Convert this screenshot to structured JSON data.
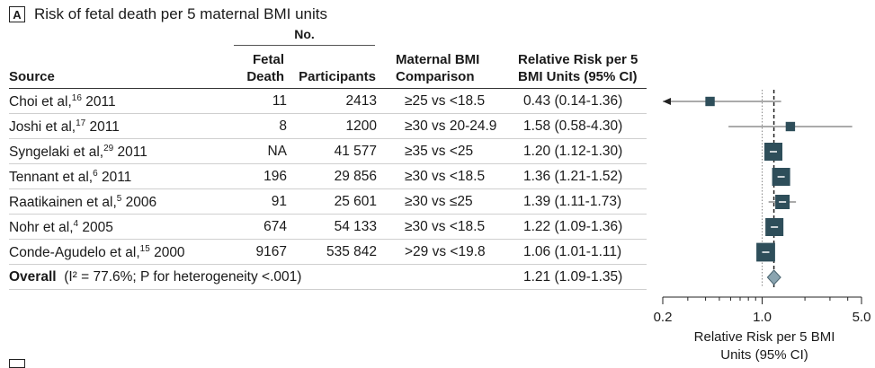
{
  "panel": {
    "label": "A",
    "title": "Risk of fetal death per 5 maternal BMI units"
  },
  "columns": {
    "group_no": "No.",
    "source": "Source",
    "fetal_death_1": "Fetal",
    "fetal_death_2": "Death",
    "participants": "Participants",
    "comparison_1": "Maternal BMI",
    "comparison_2": "Comparison",
    "rr_1": "Relative Risk per 5",
    "rr_2": "BMI Units (95% CI)"
  },
  "rows": [
    {
      "author": "Choi et al,",
      "ref": "16",
      "year": " 2011",
      "fetal_death": "11",
      "participants": "2413",
      "comparison": "≥25 vs <18.5",
      "rr_text": "0.43 (0.14-1.36)"
    },
    {
      "author": "Joshi et al,",
      "ref": "17",
      "year": " 2011",
      "fetal_death": "8",
      "participants": "1200",
      "comparison": "≥30 vs 20-24.9",
      "rr_text": "1.58 (0.58-4.30)"
    },
    {
      "author": "Syngelaki et al,",
      "ref": "29",
      "year": " 2011",
      "fetal_death": "NA",
      "participants": "41 577",
      "comparison": "≥35 vs <25",
      "rr_text": "1.20 (1.12-1.30)"
    },
    {
      "author": "Tennant et al,",
      "ref": "6",
      "year": " 2011",
      "fetal_death": "196",
      "participants": "29 856",
      "comparison": "≥30 vs <18.5",
      "rr_text": "1.36 (1.21-1.52)"
    },
    {
      "author": "Raatikainen et al,",
      "ref": "5",
      "year": " 2006",
      "fetal_death": "91",
      "participants": "25 601",
      "comparison": "≥30 vs ≤25",
      "rr_text": "1.39 (1.11-1.73)"
    },
    {
      "author": "Nohr et al,",
      "ref": "4",
      "year": " 2005",
      "fetal_death": "674",
      "participants": "54 133",
      "comparison": "≥30 vs <18.5",
      "rr_text": "1.22 (1.09-1.36)"
    },
    {
      "author": "Conde-Agudelo et al,",
      "ref": "15",
      "year": " 2000",
      "fetal_death": "9167",
      "participants": "535 842",
      "comparison": ">29 vs <19.8",
      "rr_text": "1.06 (1.01-1.11)"
    }
  ],
  "overall": {
    "label": "Overall",
    "stats": "(I² = 77.6%; P for heterogeneity <.001)",
    "rr_text": "1.21 (1.09-1.35)"
  },
  "chart_data": {
    "type": "forest",
    "x_scale": "log",
    "xlim": [
      0.2,
      5.0
    ],
    "xticks": [
      "0.2",
      "1.0",
      "5.0"
    ],
    "xlabel_1": "Relative Risk per 5 BMI",
    "xlabel_2": "Units (95% CI)",
    "reference_line": 1.0,
    "summary_line": 1.21,
    "studies": [
      {
        "rr": 0.43,
        "lo": 0.14,
        "hi": 1.36,
        "weight": 0.4
      },
      {
        "rr": 1.58,
        "lo": 0.58,
        "hi": 4.3,
        "weight": 0.4
      },
      {
        "rr": 1.2,
        "lo": 1.12,
        "hi": 1.3,
        "weight": 1.0
      },
      {
        "rr": 1.36,
        "lo": 1.21,
        "hi": 1.52,
        "weight": 1.0
      },
      {
        "rr": 1.39,
        "lo": 1.11,
        "hi": 1.73,
        "weight": 0.75
      },
      {
        "rr": 1.22,
        "lo": 1.09,
        "hi": 1.36,
        "weight": 1.0
      },
      {
        "rr": 1.06,
        "lo": 1.01,
        "hi": 1.11,
        "weight": 1.05
      }
    ],
    "overall": {
      "rr": 1.21,
      "lo": 1.09,
      "hi": 1.35
    },
    "colors": {
      "box": "#2e4e5a",
      "diamond": "#8aa4b0",
      "line": "#333333"
    }
  }
}
